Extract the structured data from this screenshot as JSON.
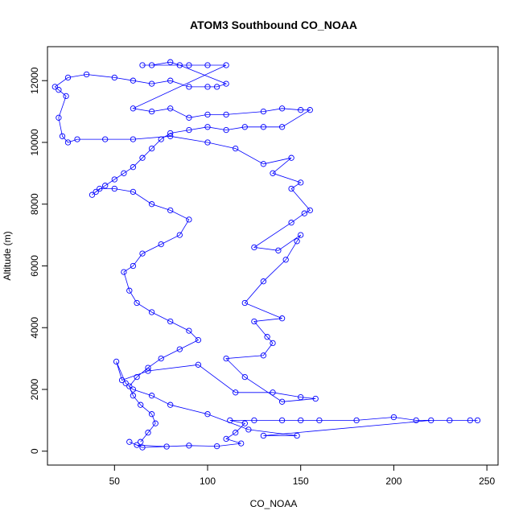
{
  "chart_data": {
    "type": "scatter",
    "title": "ATOM3 Southbound CO_NOAA",
    "xlabel": "CO_NOAA",
    "ylabel": "Altitude (m)",
    "xlim": [
      14,
      256
    ],
    "ylim": [
      -450,
      13100
    ],
    "xticks": [
      50,
      100,
      150,
      200,
      250
    ],
    "yticks": [
      0,
      2000,
      4000,
      6000,
      8000,
      10000,
      12000
    ],
    "marker": "open-circle",
    "connected_by_line": true,
    "series_color": "#0000ff",
    "series": [
      {
        "points": [
          [
            78,
            150
          ],
          [
            62,
            200
          ],
          [
            58,
            300
          ],
          [
            65,
            120
          ],
          [
            90,
            180
          ],
          [
            105,
            160
          ],
          [
            118,
            250
          ],
          [
            110,
            400
          ],
          [
            115,
            600
          ],
          [
            120,
            900
          ],
          [
            112,
            1000
          ],
          [
            125,
            1000
          ],
          [
            140,
            1000
          ],
          [
            150,
            1000
          ],
          [
            160,
            1000
          ],
          [
            180,
            1000
          ],
          [
            200,
            1100
          ],
          [
            212,
            1000
          ],
          [
            230,
            1000
          ],
          [
            245,
            1000
          ],
          [
            241,
            1000
          ],
          [
            220,
            1000
          ],
          [
            130,
            500
          ],
          [
            148,
            500
          ],
          [
            122,
            700
          ],
          [
            100,
            1200
          ],
          [
            80,
            1500
          ],
          [
            70,
            1800
          ],
          [
            60,
            2000
          ],
          [
            56,
            2200
          ],
          [
            51,
            2900
          ],
          [
            54,
            2300
          ],
          [
            68,
            2600
          ],
          [
            95,
            2800
          ],
          [
            115,
            1900
          ],
          [
            135,
            1900
          ],
          [
            150,
            1750
          ],
          [
            158,
            1700
          ],
          [
            140,
            1600
          ],
          [
            120,
            2400
          ],
          [
            110,
            3000
          ],
          [
            130,
            3100
          ],
          [
            135,
            3500
          ],
          [
            132,
            3700
          ],
          [
            125,
            4200
          ],
          [
            140,
            4300
          ],
          [
            120,
            4800
          ],
          [
            130,
            5500
          ],
          [
            142,
            6200
          ],
          [
            148,
            6800
          ],
          [
            150,
            7000
          ],
          [
            138,
            6500
          ],
          [
            125,
            6600
          ],
          [
            145,
            7400
          ],
          [
            152,
            7700
          ],
          [
            155,
            7800
          ],
          [
            145,
            8500
          ],
          [
            150,
            8700
          ],
          [
            135,
            9000
          ],
          [
            145,
            9500
          ],
          [
            130,
            9300
          ],
          [
            115,
            9800
          ],
          [
            100,
            10000
          ],
          [
            80,
            10200
          ],
          [
            60,
            10100
          ],
          [
            45,
            10100
          ],
          [
            30,
            10100
          ],
          [
            25,
            10000
          ],
          [
            22,
            10200
          ],
          [
            20,
            10800
          ],
          [
            24,
            11500
          ],
          [
            20,
            11700
          ],
          [
            18,
            11800
          ],
          [
            25,
            12100
          ],
          [
            35,
            12200
          ],
          [
            50,
            12100
          ],
          [
            60,
            12000
          ],
          [
            70,
            11900
          ],
          [
            80,
            12000
          ],
          [
            90,
            11800
          ],
          [
            100,
            11800
          ],
          [
            105,
            11800
          ],
          [
            110,
            11900
          ],
          [
            85,
            12500
          ],
          [
            80,
            12600
          ],
          [
            70,
            12500
          ],
          [
            65,
            12500
          ],
          [
            90,
            12500
          ],
          [
            100,
            12500
          ],
          [
            110,
            12500
          ],
          [
            60,
            11100
          ],
          [
            70,
            11000
          ],
          [
            80,
            11100
          ],
          [
            90,
            10800
          ],
          [
            100,
            10900
          ],
          [
            110,
            10900
          ],
          [
            130,
            11000
          ],
          [
            140,
            11100
          ],
          [
            150,
            11050
          ],
          [
            155,
            11050
          ],
          [
            140,
            10500
          ],
          [
            130,
            10500
          ],
          [
            120,
            10500
          ],
          [
            110,
            10400
          ],
          [
            100,
            10500
          ],
          [
            90,
            10400
          ],
          [
            80,
            10300
          ],
          [
            75,
            10100
          ],
          [
            70,
            9800
          ],
          [
            65,
            9500
          ],
          [
            60,
            9200
          ],
          [
            55,
            9000
          ],
          [
            50,
            8800
          ],
          [
            45,
            8600
          ],
          [
            40,
            8400
          ],
          [
            38,
            8300
          ],
          [
            42,
            8500
          ],
          [
            50,
            8500
          ],
          [
            60,
            8400
          ],
          [
            70,
            8000
          ],
          [
            80,
            7800
          ],
          [
            90,
            7500
          ],
          [
            85,
            7000
          ],
          [
            75,
            6700
          ],
          [
            65,
            6400
          ],
          [
            60,
            6000
          ],
          [
            55,
            5800
          ],
          [
            58,
            5200
          ],
          [
            62,
            4800
          ],
          [
            70,
            4500
          ],
          [
            80,
            4200
          ],
          [
            90,
            3900
          ],
          [
            95,
            3600
          ],
          [
            85,
            3300
          ],
          [
            75,
            3000
          ],
          [
            68,
            2700
          ],
          [
            62,
            2400
          ],
          [
            58,
            2100
          ],
          [
            60,
            1800
          ],
          [
            64,
            1500
          ],
          [
            70,
            1200
          ],
          [
            72,
            900
          ],
          [
            68,
            600
          ],
          [
            64,
            300
          ]
        ]
      }
    ]
  }
}
